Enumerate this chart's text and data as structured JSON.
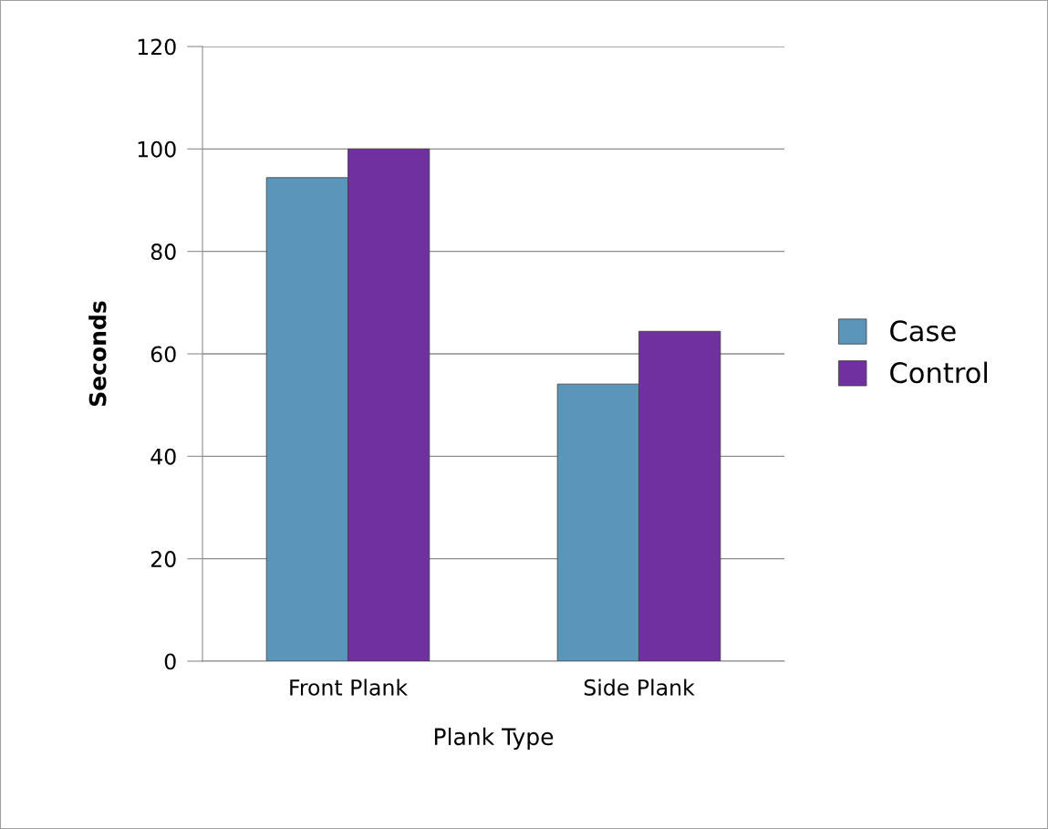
{
  "chart_data": {
    "type": "bar",
    "xlabel": "Plank Type",
    "ylabel": "Seconds",
    "categories": [
      "Front Plank",
      "Side Plank"
    ],
    "series": [
      {
        "name": "Case",
        "color": "#5b95ba",
        "values": [
          94.4,
          54.1
        ]
      },
      {
        "name": "Control",
        "color": "#7030a0",
        "values": [
          100,
          64.4
        ]
      }
    ],
    "ylim": [
      0,
      120
    ],
    "yticks": [
      0,
      20,
      40,
      60,
      80,
      100,
      120
    ],
    "grid": "y",
    "legend": "right"
  }
}
